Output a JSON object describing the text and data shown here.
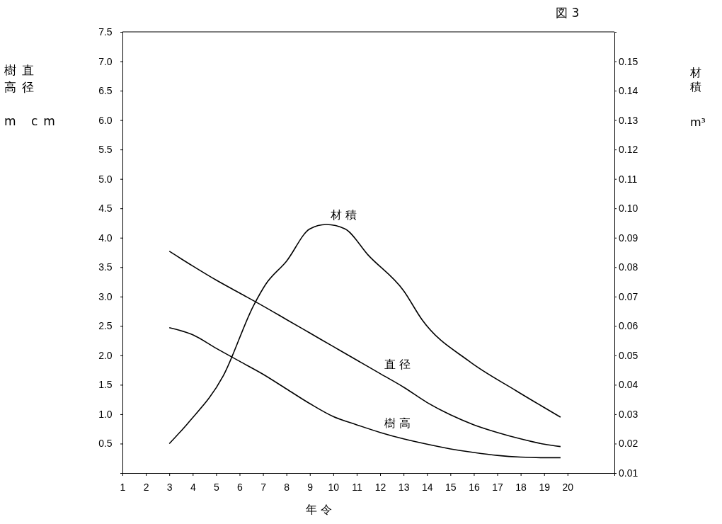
{
  "chart_data": {
    "type": "line",
    "xlabel": "年 令",
    "ylabel": "樹直高径m cm",
    "y2label": "材積 m³",
    "annotations": [
      "図 3"
    ],
    "xlim": [
      1,
      22
    ],
    "xticks": [
      1,
      2,
      3,
      4,
      5,
      6,
      7,
      8,
      9,
      10,
      11,
      12,
      13,
      14,
      15,
      16,
      17,
      18,
      19,
      20
    ],
    "ylim": [
      0,
      7.5
    ],
    "yticks": [
      0.5,
      {
        "value": 1,
        "label": "1.0"
      },
      1.5,
      {
        "value": 2,
        "label": "2.0"
      },
      2.5,
      {
        "value": 3,
        "label": "3.0"
      },
      3.5,
      {
        "value": 4,
        "label": "4.0"
      },
      4.5,
      {
        "value": 5,
        "label": "5.0"
      },
      5.5,
      {
        "value": 6,
        "label": "6.0"
      },
      6.5,
      {
        "value": 7,
        "label": "7.0"
      },
      7.5
    ],
    "y2lim": [
      0.01,
      0.16
    ],
    "y2ticks": [
      0.01,
      0.02,
      0.03,
      0.04,
      0.05,
      0.06,
      0.07,
      0.08,
      0.09,
      {
        "value": 0.1,
        "label": "0.10"
      },
      0.11,
      0.12,
      0.13,
      0.14,
      0.15
    ],
    "series": [
      {
        "name": "材 積",
        "color": "#000000",
        "axis": "y2",
        "x": [
          3,
          3.8,
          5.3,
          6.6,
          7.1,
          8,
          9,
          9.7,
          10.5,
          11.5,
          13,
          13.8,
          15.8,
          17.8,
          19.7
        ],
        "values": [
          0.02,
          0.027,
          0.043,
          0.067,
          0.074,
          0.082,
          0.093,
          0.0945,
          0.093,
          0.084,
          0.072,
          0.062,
          0.048,
          0.038,
          0.029
        ]
      },
      {
        "name": "直 径",
        "color": "#000000",
        "x": [
          3,
          4,
          5,
          6,
          7,
          8,
          9,
          10,
          11,
          12,
          13,
          14,
          15,
          16,
          17,
          18,
          19,
          19.7
        ],
        "values": [
          3.77,
          3.52,
          3.28,
          3.06,
          2.84,
          2.61,
          2.38,
          2.15,
          1.92,
          1.69,
          1.46,
          1.2,
          0.99,
          0.82,
          0.69,
          0.58,
          0.49,
          0.45
        ]
      },
      {
        "name": "樹 高",
        "color": "#000000",
        "x": [
          3,
          4,
          5,
          6,
          7,
          8,
          9,
          10,
          11,
          12,
          13,
          14,
          15,
          16,
          17,
          18,
          19,
          19.7
        ],
        "values": [
          2.47,
          2.35,
          2.12,
          1.9,
          1.68,
          1.43,
          1.18,
          0.96,
          0.82,
          0.69,
          0.58,
          0.49,
          0.41,
          0.35,
          0.3,
          0.27,
          0.26,
          0.26
        ]
      }
    ]
  }
}
